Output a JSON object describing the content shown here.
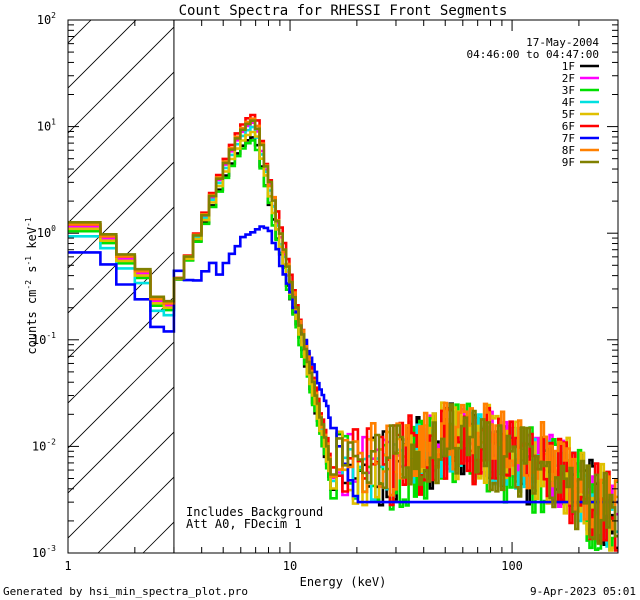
{
  "chart_data": {
    "type": "line",
    "title": "Count Spectra for RHESSI Front Segments",
    "date": "17-May-2004",
    "time_range": "04:46:00 to 04:47:00",
    "xlabel": "Energy (keV)",
    "ylabel_main": "counts cm",
    "ylabel_exp1": "-2",
    "ylabel_mid": " s",
    "ylabel_exp2": "-1",
    "ylabel_unit": " keV",
    "ylabel_exp3": "-1",
    "xscale": "log",
    "yscale": "log",
    "xlim": [
      1,
      300
    ],
    "ylim": [
      0.001,
      100
    ],
    "xticks": [
      {
        "value": 1,
        "label": "1"
      },
      {
        "value": 10,
        "label": "10"
      },
      {
        "value": 100,
        "label": "100"
      }
    ],
    "yticks": [
      {
        "value": 0.001,
        "mantissa": "10",
        "exp": "-3"
      },
      {
        "value": 0.01,
        "mantissa": "10",
        "exp": "-2"
      },
      {
        "value": 0.1,
        "mantissa": "10",
        "exp": "-1"
      },
      {
        "value": 1,
        "mantissa": "10",
        "exp": "0"
      },
      {
        "value": 10,
        "mantissa": "10",
        "exp": "1"
      },
      {
        "value": 100,
        "mantissa": "10",
        "exp": "2"
      }
    ],
    "hatched_region": {
      "from": 1,
      "to": 3
    },
    "annotations": [
      "Includes Background",
      "Att A0, FDecim 1"
    ],
    "series": [
      {
        "name": "1F",
        "color": "#000000",
        "low_scale": 1.0,
        "peak": 8.0,
        "tail_scale": 1.0,
        "noise": 0.8
      },
      {
        "name": "2F",
        "color": "#ff00ff",
        "low_scale": 1.05,
        "peak": 11.0,
        "tail_scale": 1.05,
        "noise": 0.7
      },
      {
        "name": "3F",
        "color": "#00e000",
        "low_scale": 0.95,
        "peak": 7.5,
        "tail_scale": 0.95,
        "noise": 0.9
      },
      {
        "name": "4F",
        "color": "#00e0e0",
        "low_scale": 0.85,
        "peak": 10.0,
        "tail_scale": 1.0,
        "noise": 0.7
      },
      {
        "name": "5F",
        "color": "#e0c000",
        "low_scale": 1.0,
        "peak": 9.0,
        "tail_scale": 1.1,
        "noise": 0.8
      },
      {
        "name": "6F",
        "color": "#ff0000",
        "low_scale": 1.1,
        "peak": 13.0,
        "tail_scale": 1.05,
        "noise": 0.85
      },
      {
        "name": "7F",
        "color": "#0000ff",
        "low_scale": 0.6,
        "peak": 1.2,
        "tail_scale": 0.9,
        "noise": 0.9
      },
      {
        "name": "8F",
        "color": "#ff8000",
        "low_scale": 1.1,
        "peak": 12.0,
        "tail_scale": 1.2,
        "noise": 0.75
      },
      {
        "name": "9F",
        "color": "#808000",
        "low_scale": 1.15,
        "peak": 11.5,
        "tail_scale": 1.0,
        "noise": 0.8
      }
    ]
  },
  "footer": {
    "left": "Generated by hsi_min_spectra_plot.pro",
    "right": "9-Apr-2023 05:01"
  }
}
